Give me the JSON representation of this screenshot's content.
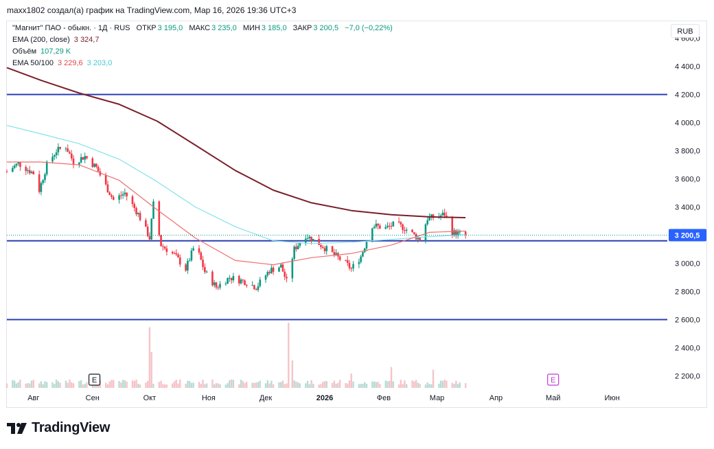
{
  "header": {
    "text": "maxx1802 создал(а) график на TradingView.com, Мар 16, 2026 19:36 UTC+3"
  },
  "legend": {
    "symbol": {
      "name": "\"Магнит\" ПАО - обыкн. · 1Д · RUS",
      "open_label": "ОТКР",
      "open_value": "3 195,0",
      "high_label": "МАКС",
      "high_value": "3 235,0",
      "low_label": "МИН",
      "low_value": "3 185,0",
      "close_label": "ЗАКР",
      "close_value": "3 200,5",
      "change": "−7,0 (−0,22%)"
    },
    "ema200": {
      "label": "EMA (200, close)",
      "value": "3 324,7"
    },
    "volume": {
      "label": "Объём",
      "value": "107,29 K"
    },
    "ema50_100": {
      "label": "EMA 50/100",
      "value50": "3 229,6",
      "value100": "3 203,0"
    }
  },
  "currency": "RUB",
  "footer": {
    "brand": "TradingView"
  },
  "colors": {
    "up": "#089981",
    "down": "#f23645",
    "ema200": "#7b1e2a",
    "ema50": "#ef6c6c",
    "ema100": "#7fe3ea",
    "hline": "#2a3fb0",
    "price_label": "#2962ff",
    "event_purple": "#c03bd1"
  },
  "chart_data": {
    "type": "candlestick",
    "symbol": "\"Магнит\" ПАО - обыкн.",
    "interval": "1Д",
    "y_ticks": [
      "4 600,0",
      "4 400,0",
      "4 200,0",
      "4 000,0",
      "3 800,0",
      "3 600,0",
      "3 400,0",
      "3 200,0",
      "3 000,0",
      "2 800,0",
      "2 600,0",
      "2 400,0",
      "2 200,0"
    ],
    "y_tick_values": [
      4600,
      4400,
      4200,
      4000,
      3800,
      3600,
      3400,
      3200,
      3000,
      2800,
      2600,
      2400,
      2200
    ],
    "ylim": [
      2100,
      4720
    ],
    "x_ticks": [
      {
        "label": "Авг",
        "date": "2025-08-01",
        "bold": false
      },
      {
        "label": "Сен",
        "date": "2025-09-01",
        "bold": false
      },
      {
        "label": "Окт",
        "date": "2025-10-01",
        "bold": false
      },
      {
        "label": "Ноя",
        "date": "2025-11-01",
        "bold": false
      },
      {
        "label": "Дек",
        "date": "2025-12-01",
        "bold": false
      },
      {
        "label": "2026",
        "date": "2026-01-01",
        "bold": true
      },
      {
        "label": "Фев",
        "date": "2026-02-01",
        "bold": false
      },
      {
        "label": "Мар",
        "date": "2026-03-01",
        "bold": false
      },
      {
        "label": "Апр",
        "date": "2026-04-01",
        "bold": false
      },
      {
        "label": "Май",
        "date": "2026-05-01",
        "bold": false
      },
      {
        "label": "Июн",
        "date": "2026-06-01",
        "bold": false
      }
    ],
    "xlim": [
      "2025-07-18",
      "2026-06-30"
    ],
    "horizontal_lines": [
      4200,
      3160,
      2600
    ],
    "last_price": {
      "value": 3200.5,
      "label": "3 200,5"
    },
    "events": [
      {
        "date": "2025-09-02",
        "icon": "E",
        "kind": "earnings"
      },
      {
        "date": "2026-05-01",
        "icon": "E",
        "kind": "earnings-upcoming"
      }
    ],
    "ema200": [
      [
        "2025-07-18",
        4390
      ],
      [
        "2025-08-05",
        4300
      ],
      [
        "2025-08-25",
        4210
      ],
      [
        "2025-09-15",
        4130
      ],
      [
        "2025-10-05",
        4010
      ],
      [
        "2025-10-25",
        3840
      ],
      [
        "2025-11-15",
        3660
      ],
      [
        "2025-12-05",
        3520
      ],
      [
        "2025-12-25",
        3430
      ],
      [
        "2026-01-15",
        3375
      ],
      [
        "2026-02-05",
        3345
      ],
      [
        "2026-02-25",
        3330
      ],
      [
        "2026-03-16",
        3324.7
      ]
    ],
    "ema100": [
      [
        "2025-07-18",
        3980
      ],
      [
        "2025-08-05",
        3920
      ],
      [
        "2025-08-25",
        3850
      ],
      [
        "2025-09-15",
        3740
      ],
      [
        "2025-10-05",
        3580
      ],
      [
        "2025-10-25",
        3400
      ],
      [
        "2025-11-15",
        3260
      ],
      [
        "2025-12-05",
        3160
      ],
      [
        "2025-12-25",
        3140
      ],
      [
        "2026-01-15",
        3150
      ],
      [
        "2026-02-05",
        3170
      ],
      [
        "2026-02-25",
        3190
      ],
      [
        "2026-03-16",
        3203
      ]
    ],
    "ema50": [
      [
        "2025-07-18",
        3720
      ],
      [
        "2025-08-05",
        3720
      ],
      [
        "2025-08-25",
        3700
      ],
      [
        "2025-09-15",
        3590
      ],
      [
        "2025-10-05",
        3380
      ],
      [
        "2025-10-25",
        3180
      ],
      [
        "2025-11-15",
        3020
      ],
      [
        "2025-12-05",
        2990
      ],
      [
        "2025-12-25",
        3040
      ],
      [
        "2026-01-15",
        3070
      ],
      [
        "2026-02-05",
        3130
      ],
      [
        "2026-02-25",
        3220
      ],
      [
        "2026-03-16",
        3229.6
      ]
    ],
    "price_path": [
      [
        "2025-07-18",
        3650
      ],
      [
        "2025-07-24",
        3710
      ],
      [
        "2025-08-01",
        3640
      ],
      [
        "2025-08-04",
        3520
      ],
      [
        "2025-08-08",
        3700
      ],
      [
        "2025-08-13",
        3800
      ],
      [
        "2025-08-18",
        3830
      ],
      [
        "2025-08-22",
        3720
      ],
      [
        "2025-08-28",
        3760
      ],
      [
        "2025-09-03",
        3680
      ],
      [
        "2025-09-08",
        3550
      ],
      [
        "2025-09-12",
        3450
      ],
      [
        "2025-09-18",
        3500
      ],
      [
        "2025-09-25",
        3350
      ],
      [
        "2025-10-01",
        3180
      ],
      [
        "2025-10-03",
        3420
      ],
      [
        "2025-10-07",
        3130
      ],
      [
        "2025-10-14",
        3060
      ],
      [
        "2025-10-20",
        2960
      ],
      [
        "2025-10-25",
        3140
      ],
      [
        "2025-10-30",
        2940
      ],
      [
        "2025-11-05",
        2830
      ],
      [
        "2025-11-12",
        2900
      ],
      [
        "2025-11-20",
        2870
      ],
      [
        "2025-11-26",
        2830
      ],
      [
        "2025-12-03",
        2950
      ],
      [
        "2025-12-09",
        2980
      ],
      [
        "2025-12-12",
        2870
      ],
      [
        "2025-12-16",
        3100
      ],
      [
        "2025-12-22",
        3200
      ],
      [
        "2025-12-29",
        3140
      ],
      [
        "2026-01-06",
        3060
      ],
      [
        "2026-01-12",
        3000
      ],
      [
        "2026-01-15",
        2960
      ],
      [
        "2026-01-20",
        3050
      ],
      [
        "2026-01-26",
        3270
      ],
      [
        "2026-02-02",
        3250
      ],
      [
        "2026-02-07",
        3280
      ],
      [
        "2026-02-12",
        3250
      ],
      [
        "2026-02-17",
        3200
      ],
      [
        "2026-02-20",
        3170
      ],
      [
        "2026-02-24",
        3320
      ],
      [
        "2026-03-01",
        3330
      ],
      [
        "2026-03-05",
        3350
      ],
      [
        "2026-03-09",
        3220
      ],
      [
        "2026-03-12",
        3210
      ],
      [
        "2026-03-16",
        3200.5
      ]
    ],
    "volume_spikes": [
      [
        "2025-10-01",
        0.93
      ],
      [
        "2025-10-02",
        0.55
      ],
      [
        "2025-12-13",
        1.0
      ],
      [
        "2025-12-15",
        0.42
      ],
      [
        "2026-01-15",
        0.22
      ],
      [
        "2026-02-05",
        0.32
      ],
      [
        "2026-02-27",
        0.28
      ]
    ]
  }
}
